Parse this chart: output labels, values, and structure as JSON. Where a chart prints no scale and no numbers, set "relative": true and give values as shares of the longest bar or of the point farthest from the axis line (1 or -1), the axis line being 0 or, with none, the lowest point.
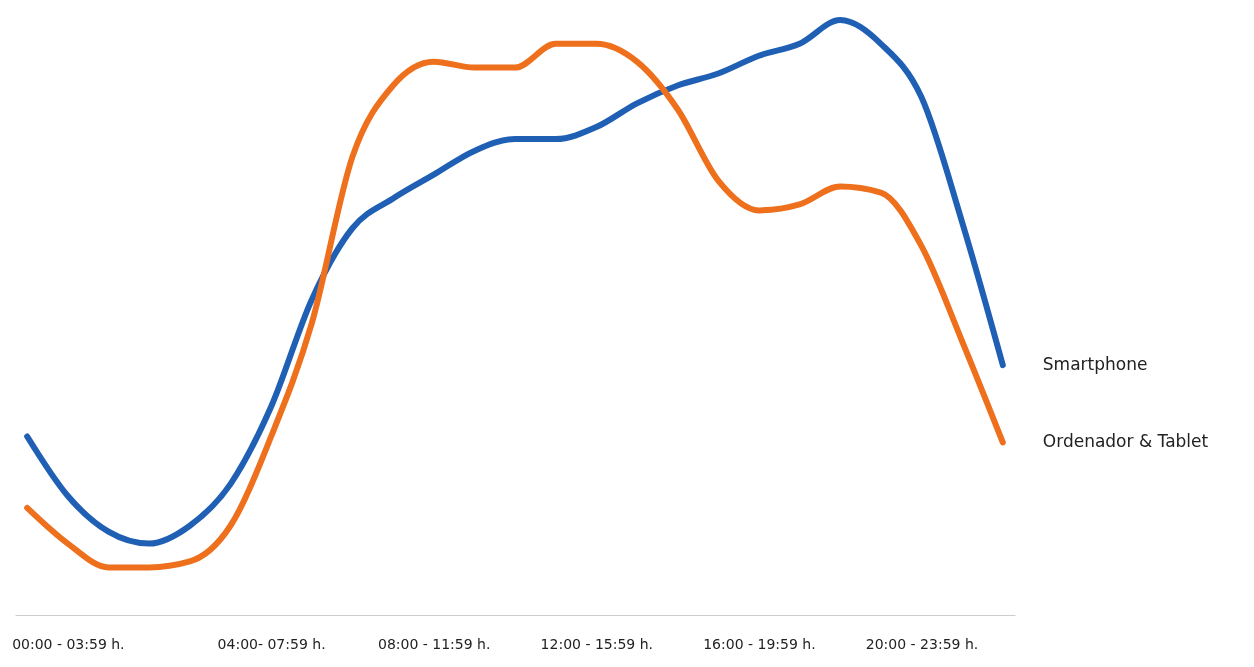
{
  "chart_data": {
    "type": "line",
    "relative": true,
    "line_style": "solid",
    "marker": "none",
    "grid": false,
    "categories": [
      null,
      "00:00 - 03:59 h.",
      null,
      null,
      null,
      null,
      "04:00- 07:59 h.",
      null,
      null,
      null,
      "08:00 - 11:59 h.",
      null,
      null,
      null,
      "12:00 - 15:59 h.",
      null,
      null,
      null,
      "16:00 - 19:59 h.",
      null,
      null,
      null,
      "20:00 - 23:59 h.",
      null,
      null
    ],
    "series": [
      {
        "name": "Smartphone",
        "color": "#1f5fb4",
        "values": [
          0.3,
          0.2,
          0.14,
          0.12,
          0.15,
          0.22,
          0.35,
          0.53,
          0.65,
          0.7,
          0.74,
          0.78,
          0.8,
          0.8,
          0.82,
          0.86,
          0.89,
          0.91,
          0.94,
          0.96,
          1.0,
          0.96,
          0.87,
          0.66,
          0.42
        ]
      },
      {
        "name": "Ordenador & Tablet",
        "color": "#ee6f1c",
        "values": [
          0.18,
          0.12,
          0.08,
          0.08,
          0.09,
          0.15,
          0.3,
          0.49,
          0.77,
          0.89,
          0.93,
          0.92,
          0.92,
          0.96,
          0.96,
          0.93,
          0.85,
          0.73,
          0.68,
          0.69,
          0.72,
          0.71,
          0.62,
          0.46,
          0.29
        ]
      }
    ]
  }
}
